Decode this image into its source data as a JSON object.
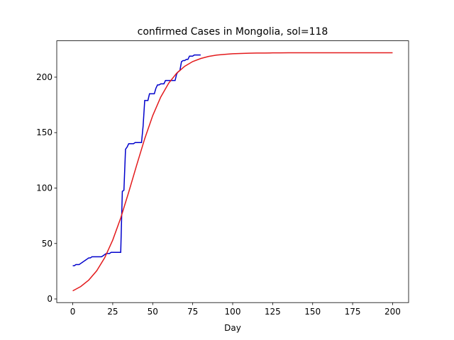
{
  "chart_data": {
    "type": "line",
    "title": "confirmed Cases in Mongolia, sol=118",
    "x_label": "Day",
    "xlim": [
      -10,
      210
    ],
    "ylim": [
      -3.3,
      232.8
    ],
    "xticks": [
      0,
      25,
      50,
      75,
      100,
      125,
      150,
      175,
      200
    ],
    "yticks": [
      0,
      50,
      100,
      150,
      200
    ],
    "grid": false,
    "series": [
      {
        "color": "#0000cc",
        "x": [
          0,
          1,
          2,
          3,
          4,
          5,
          6,
          7,
          8,
          9,
          10,
          11,
          12,
          13,
          14,
          15,
          16,
          17,
          18,
          19,
          20,
          21,
          22,
          23,
          24,
          25,
          26,
          27,
          28,
          29,
          30,
          31,
          32,
          33,
          34,
          35,
          36,
          37,
          38,
          39,
          40,
          41,
          42,
          43,
          44,
          45,
          46,
          47,
          48,
          49,
          50,
          51,
          52,
          53,
          54,
          55,
          56,
          57,
          58,
          59,
          60,
          61,
          62,
          63,
          64,
          65,
          66,
          67,
          68,
          69,
          70,
          71,
          72,
          73,
          74,
          75,
          76,
          77,
          78,
          79,
          80
        ],
        "values": [
          30,
          30,
          31,
          31,
          31,
          32,
          33,
          34,
          35,
          36,
          37,
          37,
          38,
          38,
          38,
          38,
          38,
          38,
          38,
          39,
          40,
          41,
          41,
          41,
          42,
          42,
          42,
          42,
          42,
          42,
          42,
          97,
          98,
          135,
          137,
          140,
          140,
          140,
          140,
          141,
          141,
          141,
          141,
          141,
          156,
          179,
          179,
          179,
          185,
          185,
          185,
          185,
          190,
          193,
          193,
          194,
          194,
          194,
          197,
          197,
          197,
          197,
          197,
          197,
          197,
          203,
          205,
          206,
          214,
          215,
          215,
          216,
          216,
          219,
          219,
          219,
          220,
          220,
          220,
          220,
          220
        ]
      },
      {
        "color": "#e31a1c",
        "x": [
          0,
          5,
          10,
          15,
          20,
          25,
          30,
          35,
          40,
          45,
          50,
          55,
          60,
          65,
          70,
          75,
          80,
          85,
          90,
          95,
          100,
          105,
          110,
          115,
          120,
          125,
          130,
          135,
          140,
          145,
          150,
          155,
          160,
          165,
          170,
          175,
          180,
          185,
          190,
          195,
          200
        ],
        "values": [
          7.3,
          11.2,
          17.0,
          25.4,
          37.2,
          53.1,
          73.0,
          96.3,
          120.8,
          144.5,
          165.3,
          182.0,
          194.6,
          203.6,
          209.8,
          214.1,
          216.8,
          218.7,
          219.9,
          220.6,
          221.1,
          221.4,
          221.6,
          221.8,
          221.8,
          221.9,
          221.9,
          222,
          222,
          222,
          222,
          222,
          222,
          222,
          222,
          222,
          222,
          222,
          222,
          222,
          222
        ]
      }
    ]
  }
}
